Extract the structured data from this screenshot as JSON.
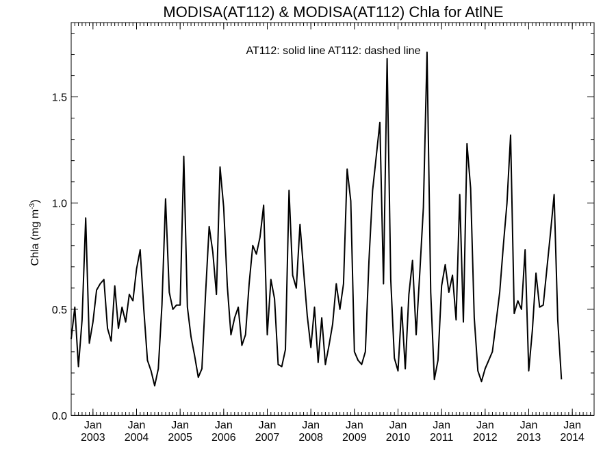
{
  "chart_data": {
    "type": "line",
    "title": "MODISA(AT112) & MODISA(AT112)  Chla for AtlNE",
    "legend": "AT112: solid line   AT112: dashed line",
    "ylabel": "Chla (mg m",
    "ylabel_sup": "-3",
    "ylabel_close": ")",
    "ylim": [
      0.0,
      1.85
    ],
    "yticks": [
      {
        "value": 0.0,
        "label": "0.0"
      },
      {
        "value": 0.5,
        "label": "0.5"
      },
      {
        "value": 1.0,
        "label": "1.0"
      },
      {
        "value": 1.5,
        "label": "1.5"
      }
    ],
    "x_start": "2002-07",
    "x_end": "2014-07",
    "xticks": [
      {
        "month": "2003-01",
        "label": "Jan",
        "year": "2003"
      },
      {
        "month": "2004-01",
        "label": "Jan",
        "year": "2004"
      },
      {
        "month": "2005-01",
        "label": "Jan",
        "year": "2005"
      },
      {
        "month": "2006-01",
        "label": "Jan",
        "year": "2006"
      },
      {
        "month": "2007-01",
        "label": "Jan",
        "year": "2007"
      },
      {
        "month": "2008-01",
        "label": "Jan",
        "year": "2008"
      },
      {
        "month": "2009-01",
        "label": "Jan",
        "year": "2009"
      },
      {
        "month": "2010-01",
        "label": "Jan",
        "year": "2010"
      },
      {
        "month": "2011-01",
        "label": "Jan",
        "year": "2011"
      },
      {
        "month": "2012-01",
        "label": "Jan",
        "year": "2012"
      },
      {
        "month": "2013-01",
        "label": "Jan",
        "year": "2013"
      },
      {
        "month": "2014-01",
        "label": "Jan",
        "year": "2014"
      }
    ],
    "series": [
      {
        "style": "solid",
        "color": "#000000",
        "points": [
          [
            "2002-07",
            0.36
          ],
          [
            "2002-08",
            0.51
          ],
          [
            "2002-09",
            0.23
          ],
          [
            "2002-10",
            0.45
          ],
          [
            "2002-11",
            0.93
          ],
          [
            "2002-12",
            0.34
          ],
          [
            "2003-01",
            0.44
          ],
          [
            "2003-02",
            0.59
          ],
          [
            "2003-03",
            0.62
          ],
          [
            "2003-04",
            0.64
          ],
          [
            "2003-05",
            0.41
          ],
          [
            "2003-06",
            0.35
          ],
          [
            "2003-07",
            0.61
          ],
          [
            "2003-08",
            0.41
          ],
          [
            "2003-09",
            0.51
          ],
          [
            "2003-10",
            0.44
          ],
          [
            "2003-11",
            0.57
          ],
          [
            "2003-12",
            0.54
          ],
          [
            "2004-01",
            0.69
          ],
          [
            "2004-02",
            0.78
          ],
          [
            "2004-03",
            0.5
          ],
          [
            "2004-04",
            0.26
          ],
          [
            "2004-05",
            0.21
          ],
          [
            "2004-06",
            0.14
          ],
          [
            "2004-07",
            0.22
          ],
          [
            "2004-08",
            0.52
          ],
          [
            "2004-09",
            1.02
          ],
          [
            "2004-10",
            0.58
          ],
          [
            "2004-11",
            0.5
          ],
          [
            "2004-12",
            0.52
          ],
          [
            "2005-01",
            0.52
          ],
          [
            "2005-02",
            1.22
          ],
          [
            "2005-03",
            0.51
          ],
          [
            "2005-04",
            0.37
          ],
          [
            "2005-05",
            0.28
          ],
          [
            "2005-06",
            0.18
          ],
          [
            "2005-07",
            0.22
          ],
          [
            "2005-08",
            0.57
          ],
          [
            "2005-09",
            0.89
          ],
          [
            "2005-10",
            0.77
          ],
          [
            "2005-11",
            0.57
          ],
          [
            "2005-12",
            1.17
          ],
          [
            "2006-01",
            0.98
          ],
          [
            "2006-02",
            0.61
          ],
          [
            "2006-03",
            0.38
          ],
          [
            "2006-04",
            0.46
          ],
          [
            "2006-05",
            0.51
          ],
          [
            "2006-06",
            0.33
          ],
          [
            "2006-07",
            0.38
          ],
          [
            "2006-08",
            0.62
          ],
          [
            "2006-09",
            0.8
          ],
          [
            "2006-10",
            0.76
          ],
          [
            "2006-11",
            0.84
          ],
          [
            "2006-12",
            0.99
          ],
          [
            "2007-01",
            0.38
          ],
          [
            "2007-02",
            0.64
          ],
          [
            "2007-03",
            0.55
          ],
          [
            "2007-04",
            0.24
          ],
          [
            "2007-05",
            0.23
          ],
          [
            "2007-06",
            0.31
          ],
          [
            "2007-07",
            1.06
          ],
          [
            "2007-08",
            0.66
          ],
          [
            "2007-09",
            0.6
          ],
          [
            "2007-10",
            0.9
          ],
          [
            "2007-11",
            0.68
          ],
          [
            "2007-12",
            0.47
          ],
          [
            "2008-01",
            0.32
          ],
          [
            "2008-02",
            0.51
          ],
          [
            "2008-03",
            0.25
          ],
          [
            "2008-04",
            0.46
          ],
          [
            "2008-05",
            0.24
          ],
          [
            "2008-06",
            0.33
          ],
          [
            "2008-07",
            0.43
          ],
          [
            "2008-08",
            0.62
          ],
          [
            "2008-09",
            0.5
          ],
          [
            "2008-10",
            0.62
          ],
          [
            "2008-11",
            1.16
          ],
          [
            "2008-12",
            1.01
          ],
          [
            "2009-01",
            0.3
          ],
          [
            "2009-02",
            0.26
          ],
          [
            "2009-03",
            0.24
          ],
          [
            "2009-04",
            0.3
          ],
          [
            "2009-05",
            0.73
          ],
          [
            "2009-06",
            1.06
          ],
          [
            "2009-07",
            1.22
          ],
          [
            "2009-08",
            1.38
          ],
          [
            "2009-09",
            0.62
          ],
          [
            "2009-10",
            1.68
          ],
          [
            "2009-11",
            0.64
          ],
          [
            "2009-12",
            0.27
          ],
          [
            "2010-01",
            0.21
          ],
          [
            "2010-02",
            0.51
          ],
          [
            "2010-03",
            0.22
          ],
          [
            "2010-04",
            0.57
          ],
          [
            "2010-05",
            0.73
          ],
          [
            "2010-06",
            0.38
          ],
          [
            "2010-07",
            0.67
          ],
          [
            "2010-08",
            0.98
          ],
          [
            "2010-09",
            1.71
          ],
          [
            "2010-10",
            0.58
          ],
          [
            "2010-11",
            0.17
          ],
          [
            "2010-12",
            0.26
          ],
          [
            "2011-01",
            0.61
          ],
          [
            "2011-02",
            0.71
          ],
          [
            "2011-03",
            0.58
          ],
          [
            "2011-04",
            0.66
          ],
          [
            "2011-05",
            0.45
          ],
          [
            "2011-06",
            1.04
          ],
          [
            "2011-07",
            0.44
          ],
          [
            "2011-08",
            1.28
          ],
          [
            "2011-09",
            1.07
          ],
          [
            "2011-10",
            0.46
          ],
          [
            "2011-11",
            0.21
          ],
          [
            "2011-12",
            0.16
          ],
          [
            "2012-01",
            0.22
          ],
          [
            "2012-02",
            0.26
          ],
          [
            "2012-03",
            0.3
          ],
          [
            "2012-04",
            0.44
          ],
          [
            "2012-05",
            0.58
          ],
          [
            "2012-06",
            0.8
          ],
          [
            "2012-07",
            1.0
          ],
          [
            "2012-08",
            1.32
          ],
          [
            "2012-09",
            0.48
          ],
          [
            "2012-10",
            0.54
          ],
          [
            "2012-11",
            0.5
          ],
          [
            "2012-12",
            0.78
          ],
          [
            "2013-01",
            0.21
          ],
          [
            "2013-02",
            0.4
          ],
          [
            "2013-03",
            0.67
          ],
          [
            "2013-04",
            0.51
          ],
          [
            "2013-05",
            0.52
          ],
          [
            "2013-06",
            0.69
          ],
          [
            "2013-07",
            0.86
          ],
          [
            "2013-08",
            1.04
          ],
          [
            "2013-09",
            0.45
          ],
          [
            "2013-10",
            0.17
          ]
        ]
      }
    ]
  }
}
